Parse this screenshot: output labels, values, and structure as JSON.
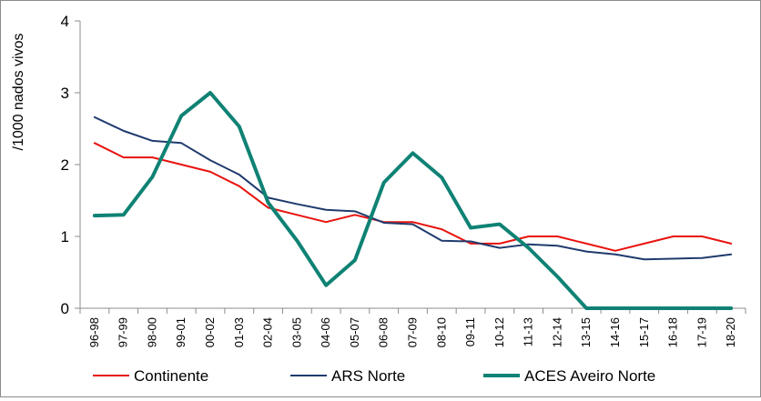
{
  "chart_data": {
    "type": "line",
    "ylabel": "/1000 nados vivos",
    "xlabel": "",
    "ylim": [
      0,
      4
    ],
    "yticks": [
      "0",
      "1",
      "2",
      "3",
      "4"
    ],
    "grid": false,
    "legend_position": "bottom",
    "categories": [
      "96-98",
      "97-99",
      "98-00",
      "99-01",
      "00-02",
      "01-03",
      "02-04",
      "03-05",
      "04-06",
      "05-07",
      "06-08",
      "07-09",
      "08-10",
      "09-11",
      "10-12",
      "11-13",
      "12-14",
      "13-15",
      "14-16",
      "15-17",
      "16-18",
      "17-19",
      "18-20"
    ],
    "series": [
      {
        "name": "Continente",
        "color": "#e8130e",
        "width": 2,
        "values": [
          2.3,
          2.1,
          2.1,
          2.0,
          1.9,
          1.7,
          1.4,
          1.3,
          1.2,
          1.3,
          1.2,
          1.2,
          1.1,
          0.9,
          0.9,
          1.0,
          1.0,
          0.9,
          0.8,
          0.9,
          1.0,
          1.0,
          0.9
        ]
      },
      {
        "name": "ARS Norte",
        "color": "#1f3b6e",
        "width": 2,
        "values": [
          2.66,
          2.47,
          2.33,
          2.3,
          2.06,
          1.86,
          1.54,
          1.45,
          1.37,
          1.35,
          1.19,
          1.17,
          0.94,
          0.93,
          0.84,
          0.89,
          0.87,
          0.79,
          0.75,
          0.68,
          0.69,
          0.7,
          0.75
        ]
      },
      {
        "name": "ACES Aveiro Norte",
        "color": "#0f8274",
        "width": 4,
        "values": [
          1.29,
          1.3,
          1.83,
          2.68,
          3.0,
          2.53,
          1.47,
          0.94,
          0.32,
          0.67,
          1.75,
          2.16,
          1.82,
          1.12,
          1.17,
          0.84,
          0.44,
          0.0,
          0.0,
          0.0,
          0.0,
          0.0,
          0.0
        ]
      }
    ]
  }
}
